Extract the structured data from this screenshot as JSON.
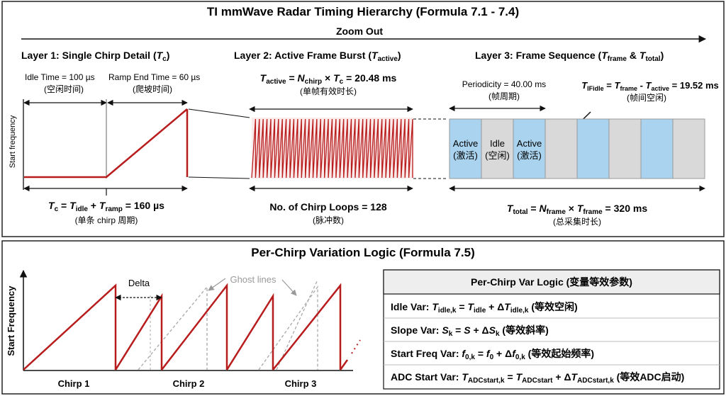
{
  "colors": {
    "chirp_red": "#b81c1c",
    "active_blue": "#a9d3ee",
    "idle_gray": "#d9d9d9",
    "ghost_gray": "#a8a8a8",
    "border": "#222222"
  },
  "top": {
    "title": "TI mmWave Radar Timing Hierarchy (Formula 7.1 - 7.4)",
    "zoom_out": "Zoom Out",
    "layer1": {
      "title": "Layer 1: Single Chirp Detail (",
      "title_sym": "T",
      "title_sub": "c",
      "title_close": ")",
      "idle_time": "Idle Time = 100 µs",
      "idle_cn": "(空闲时间)",
      "ramp_end": "Ramp End Time = 60 µs",
      "ramp_cn": "(爬坡时间)",
      "y_label": "Start frequency",
      "formula": {
        "t": "T",
        "c": "c",
        "eq1": " = ",
        "t2": "T",
        "idle": "idle",
        "plus": " + ",
        "t3": "T",
        "ramp": "ramp",
        "eq2": " = 160 µs"
      },
      "formula_cn": "(单条 chirp 周期)"
    },
    "layer2": {
      "title": "Layer 2: Active Frame Burst (",
      "title_sym": "T",
      "title_sub": "active",
      "title_close": ")",
      "formula": {
        "t": "T",
        "active": "active",
        "eq": " = ",
        "n": "N",
        "chirp": "chirp",
        "times": " × ",
        "t2": "T",
        "c": "c",
        "val": " = 20.48 ms"
      },
      "formula_cn": "(单帧有效时长)",
      "loops": "No. of Chirp Loops = 128",
      "loops_cn": "(脉冲数)"
    },
    "layer3": {
      "title": "Layer 3: Frame Sequence (",
      "title_sym1": "T",
      "title_sub1": "frame",
      "title_amp": " & ",
      "title_sym2": "T",
      "title_sub2": "total",
      "title_close": ")",
      "periodicity": "Periodicity = 40.00 ms",
      "periodicity_cn": "(帧周期)",
      "ifidle": {
        "t": "T",
        "sub": "IFidle",
        "eq": " = ",
        "t2": "T",
        "frame": "frame",
        "minus": " - ",
        "t3": "T",
        "active": "active",
        "val": " = 19.52 ms"
      },
      "ifidle_cn": "(帧间空闲)",
      "seq_labels": [
        {
          "label": "Active",
          "cn": "(激活)"
        },
        {
          "label": "Idle",
          "cn": "(空闲)"
        },
        {
          "label": "Active",
          "cn": "(激活)"
        }
      ],
      "total": {
        "t": "T",
        "total": "total",
        "eq": " = ",
        "n": "N",
        "frame": "frame",
        "times": " × ",
        "t2": "T",
        "frame2": "frame",
        "val": " = 320 ms"
      },
      "total_cn": "(总采集时长)"
    }
  },
  "bottom": {
    "title": "Per-Chirp Variation Logic (Formula 7.5)",
    "y_label": "Start Frequency",
    "delta": "Delta",
    "ghost": "Ghost lines",
    "chirps": [
      "Chirp 1",
      "Chirp 2",
      "Chirp 3"
    ],
    "table": {
      "header": "Per-Chirp Var Logic (变量等效参数)",
      "rows": [
        {
          "label": "Idle Var: ",
          "f": [
            [
              "T",
              "it"
            ],
            [
              "idle,k",
              "sub"
            ],
            [
              " = ",
              ""
            ],
            [
              "T",
              "it"
            ],
            [
              "idle",
              "sub"
            ],
            [
              " + Δ",
              ""
            ],
            [
              "T",
              "it"
            ],
            [
              "idle,k",
              "sub"
            ],
            [
              " (等效空闲)",
              ""
            ]
          ]
        },
        {
          "label": "Slope Var: ",
          "f": [
            [
              "S",
              "it"
            ],
            [
              "k",
              "sub"
            ],
            [
              " = ",
              ""
            ],
            [
              "S",
              "it"
            ],
            [
              " + Δ",
              ""
            ],
            [
              "S",
              "it"
            ],
            [
              "k",
              "sub"
            ],
            [
              " (等效斜率)",
              ""
            ]
          ]
        },
        {
          "label": "Start Freq Var: ",
          "f": [
            [
              "f",
              "it"
            ],
            [
              "0,k",
              "sub"
            ],
            [
              " = ",
              ""
            ],
            [
              "f",
              "it"
            ],
            [
              "0",
              "sub"
            ],
            [
              " + Δ",
              ""
            ],
            [
              "f",
              "it"
            ],
            [
              "0,k",
              "sub"
            ],
            [
              " (等效起始频率)",
              ""
            ]
          ]
        },
        {
          "label": "ADC Start Var: ",
          "f": [
            [
              "T",
              "it"
            ],
            [
              "ADCstart,k",
              "sub"
            ],
            [
              " = ",
              ""
            ],
            [
              "T",
              "it"
            ],
            [
              "ADCstart",
              "sub"
            ],
            [
              " + Δ",
              ""
            ],
            [
              "T",
              "it"
            ],
            [
              "ADCstart,k",
              "sub"
            ],
            [
              " (等效ADC启动)",
              ""
            ]
          ]
        }
      ]
    }
  },
  "frame_sequence": {
    "frames": 8,
    "pattern": [
      "active",
      "idle",
      "active",
      "idle",
      "active",
      "idle",
      "active",
      "idle"
    ]
  },
  "burst": {
    "chirp_loops": 128
  }
}
